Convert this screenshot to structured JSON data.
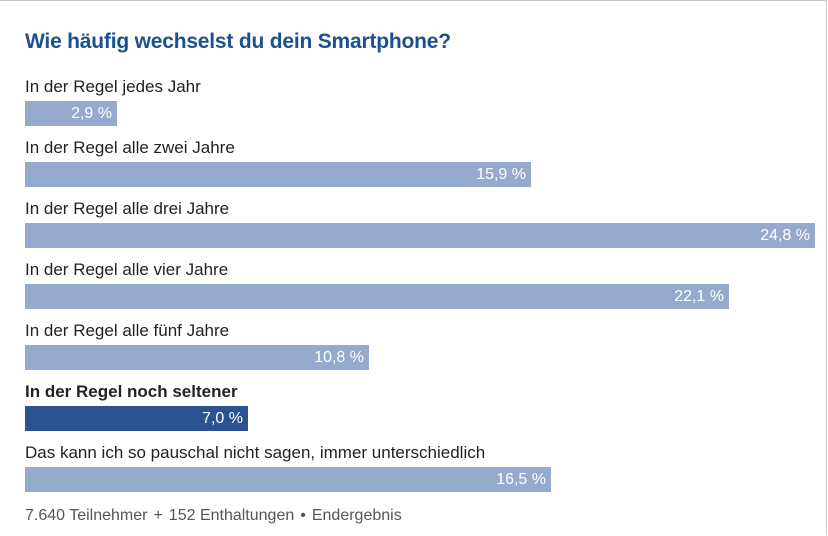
{
  "chart_data": {
    "type": "bar",
    "orientation": "horizontal",
    "title": "Wie häufig wechselst du dein Smartphone?",
    "categories": [
      "In der Regel jedes Jahr",
      "In der Regel alle zwei Jahre",
      "In der Regel alle drei Jahre",
      "In der Regel alle vier Jahre",
      "In der Regel alle fünf Jahre",
      "In der Regel noch seltener",
      "Das kann ich so pauschal nicht sagen, immer unterschiedlich"
    ],
    "values": [
      2.9,
      15.9,
      24.8,
      22.1,
      10.8,
      7.0,
      16.5
    ],
    "value_labels": [
      "2,9 %",
      "15,9 %",
      "24,8 %",
      "22,1 %",
      "10,8 %",
      "7,0 %",
      "16,5 %"
    ],
    "highlighted_index": 5,
    "unit": "%",
    "xlabel": "",
    "ylabel": ""
  },
  "colors": {
    "title": "#1e4f8f",
    "bar": "#95aacd",
    "bar_highlight": "#2b5291",
    "bar_text": "#ffffff",
    "label_text": "#222222",
    "footer_text": "#555555"
  },
  "footer": {
    "participants": "7.640 Teilnehmer",
    "sep1": "+",
    "abstentions": "152 Enthaltungen",
    "sep2": "•",
    "status": "Endergebnis"
  }
}
